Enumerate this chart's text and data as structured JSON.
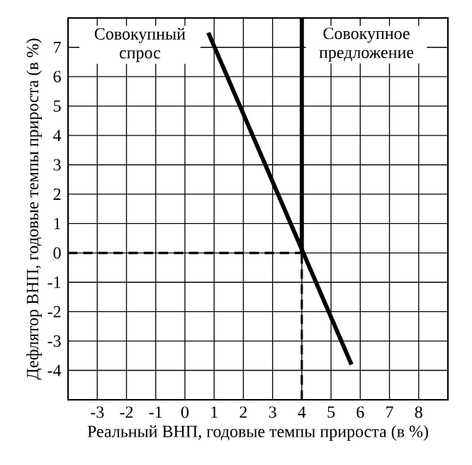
{
  "chart_data": {
    "type": "line",
    "xlabel": "Реальный ВНП, годовые темпы прироста (в %)",
    "ylabel": "Дефлятор ВНП, годовые темпы прироста (в %)",
    "series": [
      {
        "name": "Совокупный спрос",
        "color": "#000000",
        "x": [
          0.8,
          5.7
        ],
        "values": [
          7.5,
          -3.8
        ]
      },
      {
        "name": "Совокупное предложение",
        "color": "#000000",
        "x": [
          4,
          4
        ],
        "values": [
          0,
          8
        ]
      },
      {
        "color": "#000000",
        "x": [
          -4,
          4
        ],
        "values": [
          0,
          0
        ],
        "line_style": "dashed"
      },
      {
        "color": "#000000",
        "x": [
          4,
          4
        ],
        "values": [
          -5,
          0
        ],
        "line_style": "dashed"
      }
    ],
    "xlim": [
      -4,
      9
    ],
    "ylim": [
      -5,
      8
    ],
    "xticks": [
      -3,
      -2,
      -1,
      0,
      1,
      2,
      3,
      4,
      5,
      6,
      7,
      8
    ],
    "yticks": [
      -4,
      -3,
      -2,
      -1,
      0,
      1,
      2,
      3,
      4,
      5,
      6,
      7
    ],
    "grid": true,
    "marker": "none",
    "line_style": "solid",
    "legend": false
  }
}
